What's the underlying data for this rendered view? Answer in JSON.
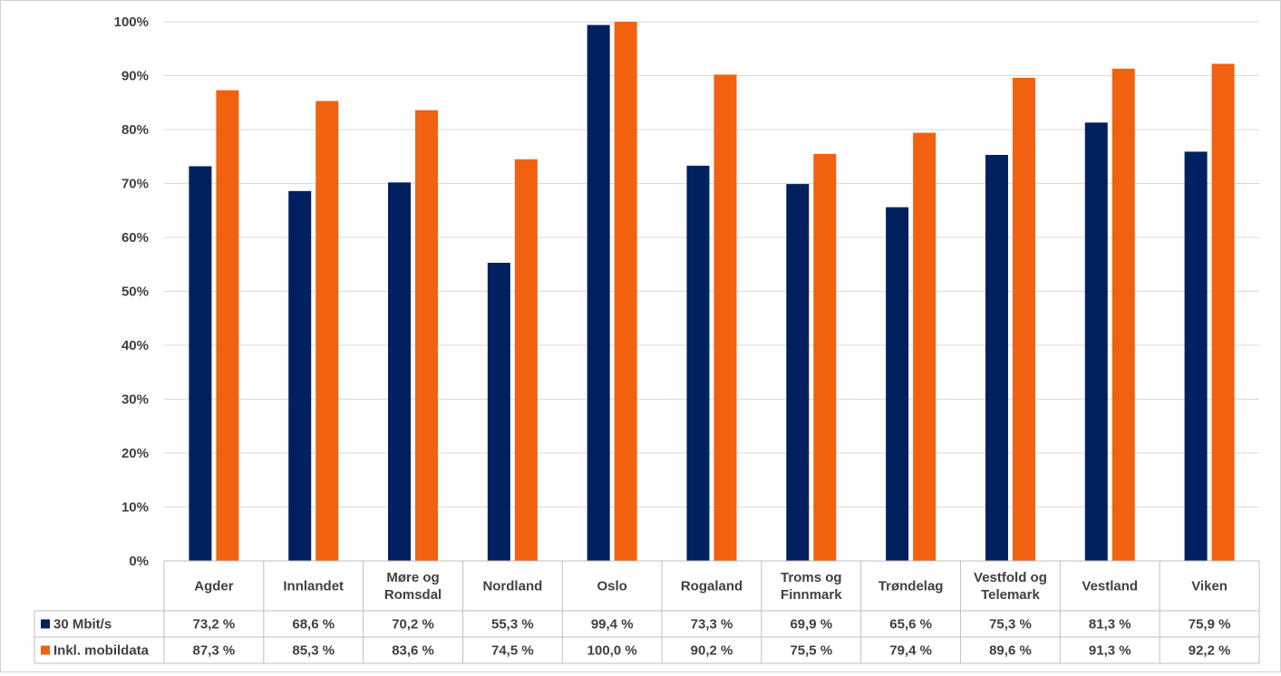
{
  "chart_data": {
    "type": "bar",
    "categories": [
      [
        "Agder"
      ],
      [
        "Innlandet"
      ],
      [
        "Møre og",
        "Romsdal"
      ],
      [
        "Nordland"
      ],
      [
        "Oslo"
      ],
      [
        "Rogaland"
      ],
      [
        "Troms og",
        "Finnmark"
      ],
      [
        "Trøndelag"
      ],
      [
        "Vestfold og",
        "Telemark"
      ],
      [
        "Vestland"
      ],
      [
        "Viken"
      ]
    ],
    "series": [
      {
        "name": "30 Mbit/s",
        "color": "#002060",
        "values": [
          73.2,
          68.6,
          70.2,
          55.3,
          99.4,
          73.3,
          69.9,
          65.6,
          75.3,
          81.3,
          75.9
        ],
        "labels": [
          "73,2 %",
          "68,6 %",
          "70,2 %",
          "55,3 %",
          "99,4 %",
          "73,3 %",
          "69,9 %",
          "65,6 %",
          "75,3 %",
          "81,3 %",
          "75,9 %"
        ]
      },
      {
        "name": "Inkl. mobildata",
        "color": "#F26110",
        "values": [
          87.3,
          85.3,
          83.6,
          74.5,
          100.0,
          90.2,
          75.5,
          79.4,
          89.6,
          91.3,
          92.2
        ],
        "labels": [
          "87,3 %",
          "85,3 %",
          "83,6 %",
          "74,5 %",
          "100,0 %",
          "90,2 %",
          "75,5 %",
          "79,4 %",
          "89,6 %",
          "91,3 %",
          "92,2 %"
        ]
      }
    ],
    "ylim": [
      0,
      100
    ],
    "yticks": [
      0,
      10,
      20,
      30,
      40,
      50,
      60,
      70,
      80,
      90,
      100
    ],
    "ytick_labels": [
      "0%",
      "10%",
      "20%",
      "30%",
      "40%",
      "50%",
      "60%",
      "70%",
      "80%",
      "90%",
      "100%"
    ],
    "grid": true,
    "legend": "data-table"
  }
}
